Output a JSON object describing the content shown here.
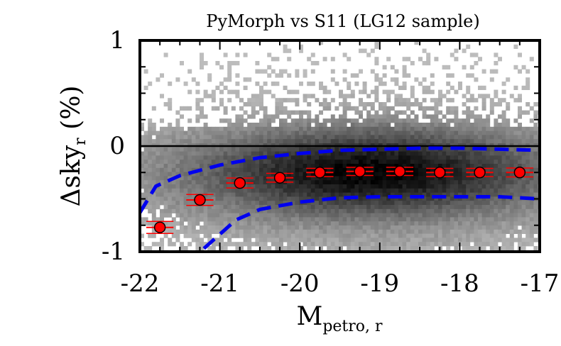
{
  "chart_data": {
    "type": "scatter",
    "title": "PyMorph vs S11 (LG12 sample)",
    "xlabel": {
      "main": "M",
      "sub": "petro, r"
    },
    "ylabel": {
      "main": "Δsky",
      "sub": "r",
      "suffix": " (%)"
    },
    "xlim": [
      -22,
      -17
    ],
    "ylim": [
      -1,
      1
    ],
    "xticks": [
      "-22",
      "-21",
      "-20",
      "-19",
      "-18",
      "-17"
    ],
    "yticks": [
      "-1",
      "0",
      "1"
    ],
    "reference_line_y": 0,
    "density_map": {
      "description": "grey 2D histogram of galaxy counts",
      "peak_x": -19.1,
      "peak_y": -0.25
    },
    "series": [
      {
        "name": "binned median",
        "color": "#ff0000",
        "x": [
          -21.75,
          -21.25,
          -20.75,
          -20.25,
          -19.75,
          -19.25,
          -18.75,
          -18.25,
          -17.75,
          -17.25
        ],
        "y": [
          -0.77,
          -0.51,
          -0.35,
          -0.3,
          -0.25,
          -0.24,
          -0.24,
          -0.25,
          -0.25,
          -0.25
        ],
        "yerr": [
          0.03,
          0.025,
          0.02,
          0.015,
          0.012,
          0.012,
          0.012,
          0.012,
          0.012,
          0.015
        ],
        "xerr": 0.17
      },
      {
        "name": "upper envelope",
        "color": "#0000ee",
        "style": "dashed",
        "x": [
          -22.0,
          -21.8,
          -21.5,
          -21.0,
          -20.5,
          -20.0,
          -19.5,
          -19.0,
          -18.5,
          -18.0,
          -17.5,
          -17.0
        ],
        "y": [
          -0.63,
          -0.38,
          -0.28,
          -0.18,
          -0.11,
          -0.07,
          -0.04,
          -0.03,
          -0.02,
          -0.02,
          -0.03,
          -0.04
        ]
      },
      {
        "name": "lower envelope",
        "color": "#0000ee",
        "style": "dashed",
        "x": [
          -21.2,
          -20.8,
          -20.5,
          -20.0,
          -19.5,
          -19.0,
          -18.5,
          -18.0,
          -17.5,
          -17.0
        ],
        "y": [
          -0.97,
          -0.7,
          -0.6,
          -0.53,
          -0.49,
          -0.48,
          -0.48,
          -0.48,
          -0.48,
          -0.5
        ]
      }
    ]
  }
}
